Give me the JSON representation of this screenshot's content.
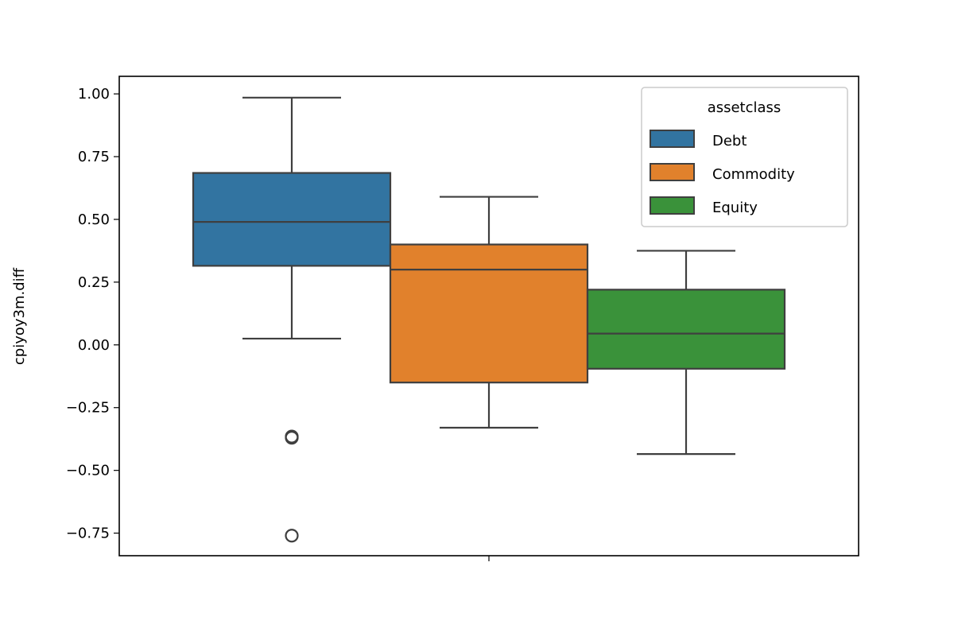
{
  "chart_data": {
    "type": "box",
    "title": "",
    "xlabel": "",
    "ylabel": "cpiyoy3m.diff",
    "ylim": [
      -0.84,
      1.07
    ],
    "yticks": [
      1.0,
      0.75,
      0.5,
      0.25,
      0.0,
      -0.25,
      -0.5,
      -0.75
    ],
    "ytick_labels": [
      "1.00",
      "0.75",
      "0.50",
      "0.25",
      "0.00",
      "−0.25",
      "−0.50",
      "−0.75"
    ],
    "xtick_labels": [
      ""
    ],
    "grid": false,
    "legend": {
      "title": "assetclass",
      "position": "upper-right",
      "entries": [
        "Debt",
        "Commodity",
        "Equity"
      ]
    },
    "series": [
      {
        "name": "Debt",
        "color": "#3274a1",
        "whisker_low": 0.025,
        "q1": 0.315,
        "median": 0.49,
        "q3": 0.685,
        "whisker_high": 0.985,
        "outliers": [
          -0.365,
          -0.37,
          -0.76
        ]
      },
      {
        "name": "Commodity",
        "color": "#e1812c",
        "whisker_low": -0.33,
        "q1": -0.15,
        "median": 0.3,
        "q3": 0.4,
        "whisker_high": 0.59,
        "outliers": []
      },
      {
        "name": "Equity",
        "color": "#3a923a",
        "whisker_low": -0.435,
        "q1": -0.095,
        "median": 0.045,
        "q3": 0.22,
        "whisker_high": 0.375,
        "outliers": []
      }
    ]
  }
}
